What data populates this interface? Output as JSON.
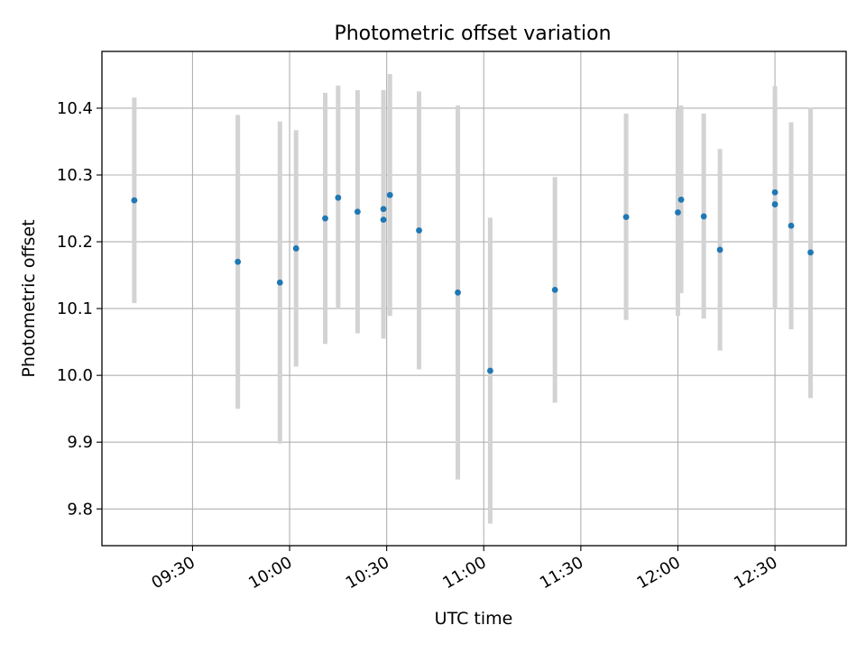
{
  "chart_data": {
    "type": "scatter",
    "title": "Photometric offset variation",
    "xlabel": "UTC time",
    "ylabel": "Photometric offset",
    "xlim": [
      "09:02",
      "12:52"
    ],
    "ylim": [
      9.745,
      10.485
    ],
    "grid": true,
    "x_ticks": [
      "09:30",
      "10:00",
      "10:30",
      "11:00",
      "11:30",
      "12:00",
      "12:30"
    ],
    "y_ticks": [
      9.8,
      9.9,
      10.0,
      10.1,
      10.2,
      10.3,
      10.4
    ],
    "y_tick_labels": [
      "9.8",
      "9.9",
      "10.0",
      "10.1",
      "10.2",
      "10.3",
      "10.4"
    ],
    "point_color": "#1f77b4",
    "errorbar_color": "#d3d3d3",
    "points": [
      {
        "time": "09:12",
        "y": 10.262,
        "ylow": 10.108,
        "yhigh": 10.416
      },
      {
        "time": "09:44",
        "y": 10.17,
        "ylow": 9.95,
        "yhigh": 10.39
      },
      {
        "time": "09:57",
        "y": 10.139,
        "ylow": 9.898,
        "yhigh": 10.38
      },
      {
        "time": "10:02",
        "y": 10.19,
        "ylow": 10.013,
        "yhigh": 10.367
      },
      {
        "time": "10:11",
        "y": 10.235,
        "ylow": 10.047,
        "yhigh": 10.423
      },
      {
        "time": "10:15",
        "y": 10.266,
        "ylow": 10.099,
        "yhigh": 10.434
      },
      {
        "time": "10:21",
        "y": 10.245,
        "ylow": 10.063,
        "yhigh": 10.427
      },
      {
        "time": "10:29",
        "y": 10.249,
        "ylow": 10.071,
        "yhigh": 10.427
      },
      {
        "time": "10:29",
        "y": 10.233,
        "ylow": 10.055,
        "yhigh": 10.411
      },
      {
        "time": "10:31",
        "y": 10.27,
        "ylow": 10.089,
        "yhigh": 10.451
      },
      {
        "time": "10:40",
        "y": 10.217,
        "ylow": 10.009,
        "yhigh": 10.425
      },
      {
        "time": "10:52",
        "y": 10.124,
        "ylow": 9.844,
        "yhigh": 10.404
      },
      {
        "time": "11:02",
        "y": 10.007,
        "ylow": 9.778,
        "yhigh": 10.236
      },
      {
        "time": "11:22",
        "y": 10.128,
        "ylow": 9.959,
        "yhigh": 10.297
      },
      {
        "time": "11:44",
        "y": 10.237,
        "ylow": 10.083,
        "yhigh": 10.392
      },
      {
        "time": "12:00",
        "y": 10.244,
        "ylow": 10.089,
        "yhigh": 10.398
      },
      {
        "time": "12:01",
        "y": 10.263,
        "ylow": 10.123,
        "yhigh": 10.404
      },
      {
        "time": "12:08",
        "y": 10.238,
        "ylow": 10.085,
        "yhigh": 10.392
      },
      {
        "time": "12:13",
        "y": 10.188,
        "ylow": 10.037,
        "yhigh": 10.339
      },
      {
        "time": "12:30",
        "y": 10.274,
        "ylow": 10.116,
        "yhigh": 10.433
      },
      {
        "time": "12:30",
        "y": 10.256,
        "ylow": 10.099,
        "yhigh": 10.414
      },
      {
        "time": "12:35",
        "y": 10.224,
        "ylow": 10.069,
        "yhigh": 10.379
      },
      {
        "time": "12:41",
        "y": 10.184,
        "ylow": 9.966,
        "yhigh": 10.401
      }
    ]
  }
}
